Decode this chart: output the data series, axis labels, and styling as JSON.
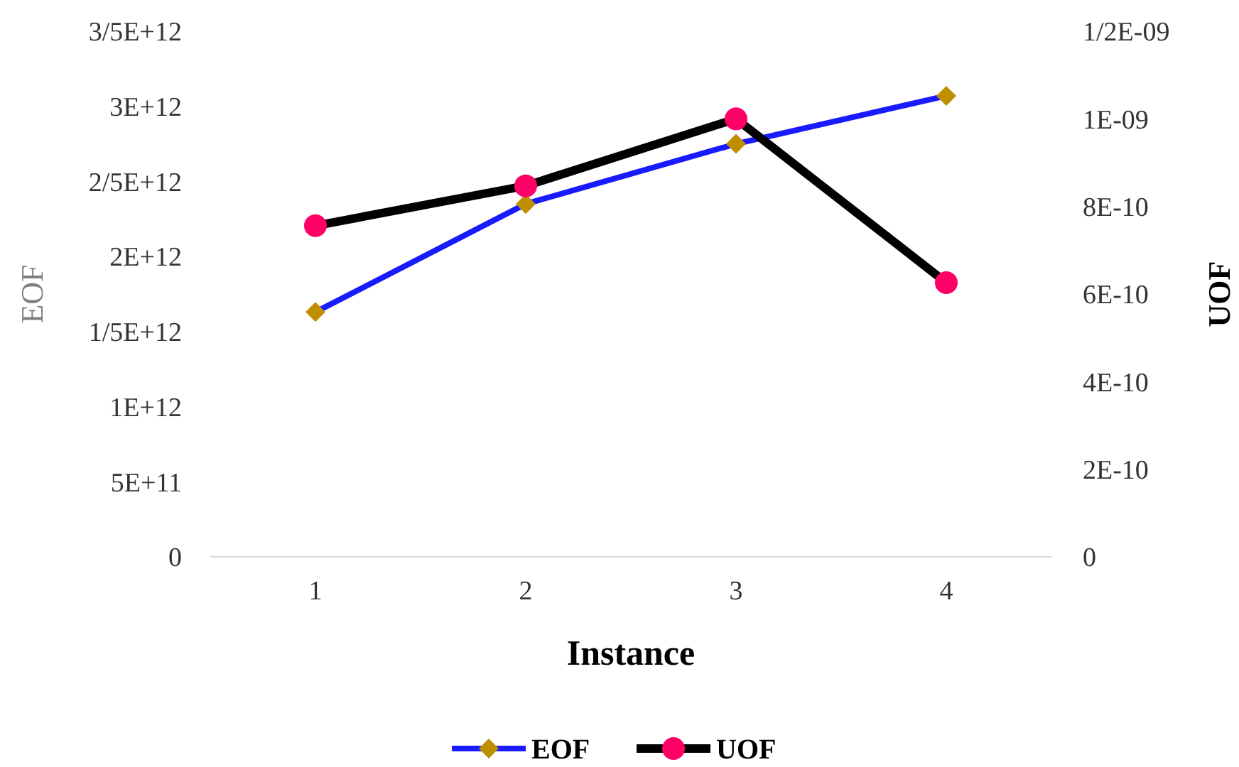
{
  "chart_data": {
    "type": "line",
    "xlabel": "Instance",
    "ylabel": "EOF",
    "y2label": "UOF",
    "categories": [
      "1",
      "2",
      "3",
      "4"
    ],
    "series": [
      {
        "name": "EOF",
        "color": "#1a1aff",
        "colors": [
          "#bf8f00",
          "#bf8f00",
          "#bf8f00",
          "#bf8f00"
        ],
        "marker": "diamond",
        "values": [
          1630000000000.0,
          2350000000000.0,
          2750000000000.0,
          3070000000000.0
        ]
      },
      {
        "name": "UOF",
        "color": "#000000",
        "colors": [
          "#ff0066",
          "#ff0066",
          "#ff0066",
          "#ff0066"
        ],
        "marker": "circle",
        "axis": "y2",
        "values": [
          7.56e-10,
          8.47e-10,
          1e-09,
          6.26e-10
        ]
      }
    ],
    "ylim": [
      0,
      3500000000000.0
    ],
    "yticks": [
      0,
      {
        "value": 500000000000.0,
        "label": "5E+11"
      },
      {
        "value": 1000000000000.0,
        "label": "1E+12"
      },
      {
        "value": 1500000000000.0,
        "label": "1/5E+12"
      },
      {
        "value": 2000000000000.0,
        "label": "2E+12"
      },
      {
        "value": 2500000000000.0,
        "label": "2/5E+12"
      },
      {
        "value": 3000000000000.0,
        "label": "3E+12"
      },
      {
        "value": 3500000000000.0,
        "label": "3/5E+12"
      }
    ],
    "y2lim": [
      0,
      1.2e-09
    ],
    "y2ticks": [
      0,
      {
        "value": 2e-10,
        "label": "2E-10"
      },
      {
        "value": 4e-10,
        "label": "4E-10"
      },
      {
        "value": 6e-10,
        "label": "6E-10"
      },
      {
        "value": 8e-10,
        "label": "8E-10"
      },
      {
        "value": 1e-09,
        "label": "1E-09"
      },
      {
        "value": 1.2e-09,
        "label": "1/2E-09"
      }
    ],
    "grid": false,
    "legend": "bottom"
  }
}
